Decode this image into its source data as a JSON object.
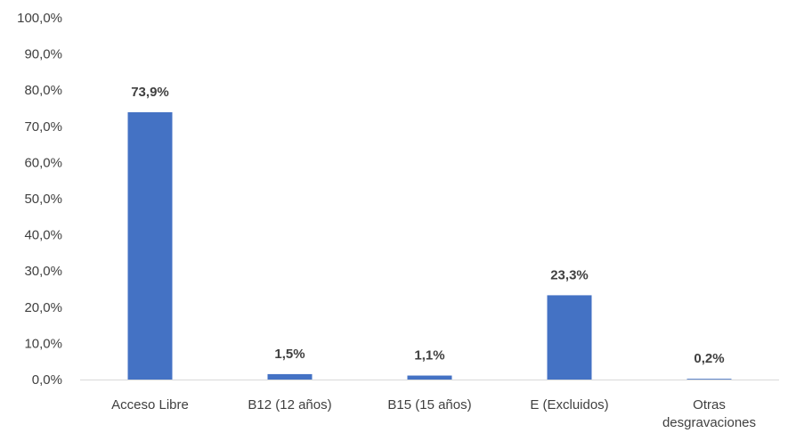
{
  "chart_data": {
    "type": "bar",
    "categories": [
      "Acceso Libre",
      "B12 (12 años)",
      "B15 (15 años)",
      "E (Excluidos)",
      "Otras desgravaciones"
    ],
    "category_lines": [
      [
        "Acceso Libre"
      ],
      [
        "B12 (12 años)"
      ],
      [
        "B15 (15 años)"
      ],
      [
        "E (Excluidos)"
      ],
      [
        "Otras",
        "desgravaciones"
      ]
    ],
    "values": [
      73.9,
      1.5,
      1.1,
      23.3,
      0.2
    ],
    "data_labels": [
      "73,9%",
      "1,5%",
      "1,1%",
      "23,3%",
      "0,2%"
    ],
    "y_ticks": [
      0,
      10,
      20,
      30,
      40,
      50,
      60,
      70,
      80,
      90,
      100
    ],
    "y_tick_labels": [
      "0,0%",
      "10,0%",
      "20,0%",
      "30,0%",
      "40,0%",
      "50,0%",
      "60,0%",
      "70,0%",
      "80,0%",
      "90,0%",
      "100,0%"
    ],
    "ylim": [
      0,
      100
    ],
    "title": "",
    "xlabel": "",
    "ylabel": "",
    "grid": false,
    "bar_color": "#4472C4",
    "axis_color": "#D9D9D9"
  }
}
